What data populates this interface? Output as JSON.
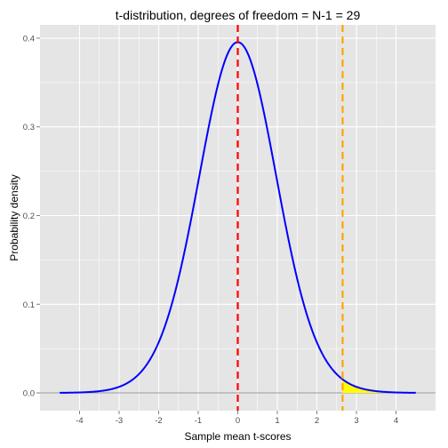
{
  "chart_data": {
    "type": "line",
    "title": "t-distribution, degrees of freedom = N-1 = 29",
    "xlabel": "Sample mean t-scores",
    "ylabel": "Probability density",
    "xlim": [
      -5,
      5
    ],
    "ylim": [
      -0.02,
      0.415
    ],
    "xticks": [
      "-4",
      "-3",
      "-2",
      "-1",
      "0",
      "1",
      "2",
      "3",
      "4"
    ],
    "yticks": [
      "0.0",
      "0.1",
      "0.2",
      "0.3",
      "0.4"
    ],
    "grid": true,
    "series": [
      {
        "values_x": [
          -4.5,
          -4.0,
          -3.5,
          -3.0,
          -2.5,
          -2.0,
          -1.5,
          -1.0,
          -0.5,
          0.0,
          0.5,
          1.0,
          1.5,
          2.0,
          2.5,
          3.0,
          3.5,
          4.0,
          4.5
        ],
        "values_y": [
          0.0003,
          0.001,
          0.0027,
          0.0066,
          0.0181,
          0.0538,
          0.1279,
          0.2374,
          0.3479,
          0.3956,
          0.3479,
          0.2374,
          0.1279,
          0.0538,
          0.0181,
          0.0066,
          0.0027,
          0.001,
          0.0003
        ],
        "color": "#0000ff"
      }
    ],
    "vlines": [
      {
        "x": 0,
        "color": "#ff0000",
        "style": "dashed"
      },
      {
        "x": 2.65,
        "color": "#ffa500",
        "style": "dashed"
      }
    ],
    "hline": {
      "y": 0,
      "color": "#999999"
    },
    "shaded_region": {
      "from": 2.65,
      "to": 4.5,
      "color": "#ffff00"
    },
    "colors": {
      "panel": "#e5e5e5",
      "grid": "#ffffff"
    }
  }
}
